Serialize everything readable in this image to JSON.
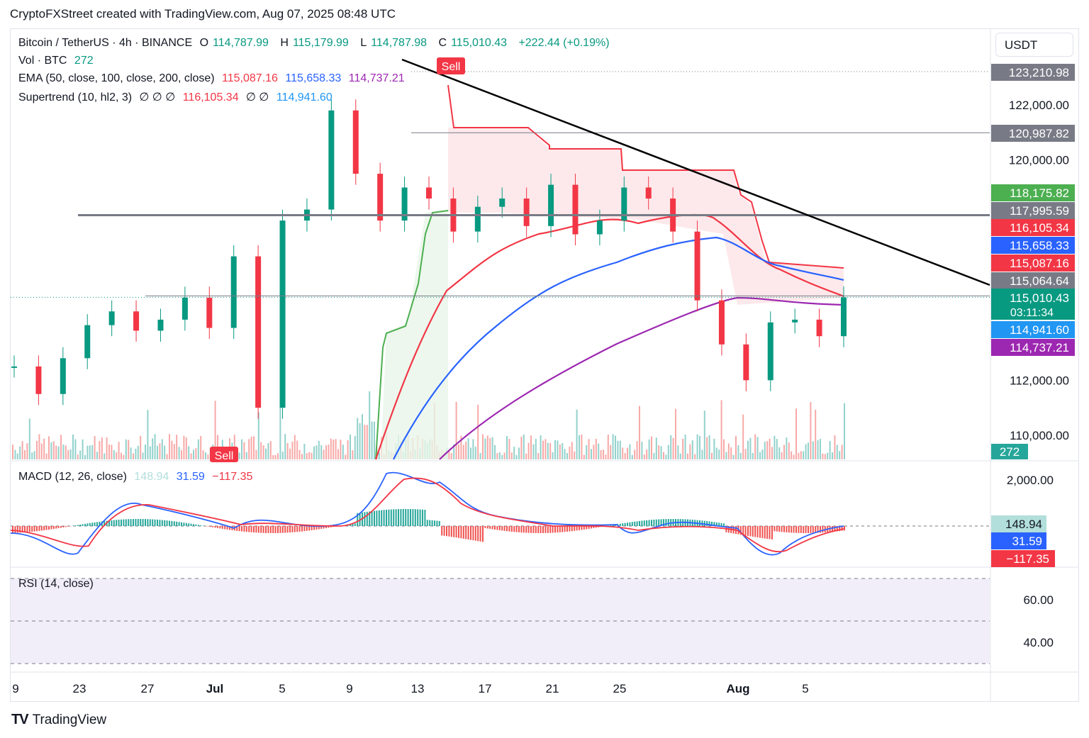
{
  "header": {
    "text": "CryptoFXStreet created with TradingView.com, Aug 07, 2025 08:48 UTC"
  },
  "footer": {
    "brand": "TradingView",
    "logo_icon": "tradingview-logo-icon"
  },
  "currency_button": "USDT",
  "legend": {
    "symbol": "Bitcoin / TetherUS · 4h · BINANCE",
    "o_label": "O",
    "o_value": "114,787.99",
    "h_label": "H",
    "h_value": "115,179.99",
    "l_label": "L",
    "l_value": "114,787.98",
    "c_label": "C",
    "c_value": "115,010.43",
    "change": "+222.44 (+0.19%)",
    "vol_label": "Vol · BTC",
    "vol_value": "272",
    "ema_label": "EMA (50, close, 100, close, 200, close)",
    "ema50": "115,087.16",
    "ema100": "115,658.33",
    "ema200": "114,737.21",
    "st_label": "Supertrend (10, hl2, 3)",
    "st_dots": "∅ ∅ ∅",
    "st_up": "116,105.34",
    "st_dots2": "∅ ∅",
    "st_down": "114,941.60",
    "macd_label": "MACD (12, 26, close)",
    "macd_hist": "148.94",
    "macd_line": "31.59",
    "macd_signal": "−117.35",
    "rsi_label": "RSI (14, close)"
  },
  "colors": {
    "up": "#089981",
    "down": "#f23645",
    "ema50": "#f23645",
    "ema100": "#2962ff",
    "ema200": "#9c27b0",
    "st_up": "#4caf50",
    "st_down": "#f23645",
    "macd": "#2962ff",
    "signal": "#f23645",
    "trendline": "#000000",
    "sr_line": "#787b86"
  },
  "chart_data": [
    {
      "type": "candlestick",
      "title": "Bitcoin / TetherUS · 4h · BINANCE",
      "x_ticks": [
        "9",
        "23",
        "27",
        "Jul",
        "5",
        "9",
        "13",
        "17",
        "21",
        "25",
        "Aug",
        "5"
      ],
      "y_ticks": [
        "122,000.00",
        "120,000.00",
        "112,000.00",
        "110,000.00"
      ],
      "ylim": [
        109000,
        124000
      ],
      "price_labels": [
        {
          "value": 123210.98,
          "text": "123,210.98",
          "color": "#787b86"
        },
        {
          "value": 120987.82,
          "text": "120,987.82",
          "color": "#787b86"
        },
        {
          "value": 118175.82,
          "text": "118,175.82",
          "color": "#4caf50"
        },
        {
          "value": 117995.59,
          "text": "117,995.59",
          "color": "#787b86"
        },
        {
          "value": 116105.34,
          "text": "116,105.34",
          "color": "#f23645"
        },
        {
          "value": 115658.33,
          "text": "115,658.33",
          "color": "#2962ff"
        },
        {
          "value": 115087.16,
          "text": "115,087.16",
          "color": "#f23645"
        },
        {
          "value": 115064.64,
          "text": "115,064.64",
          "color": "#787b86"
        },
        {
          "value": 115010.43,
          "text": "115,010.43",
          "color": "#089981"
        },
        {
          "value": 114941.6,
          "text": "114,941.60",
          "color": "#2196f3"
        },
        {
          "value": 114737.21,
          "text": "114,737.21",
          "color": "#9c27b0"
        }
      ],
      "countdown": "03:11:34",
      "volume_label": "272",
      "signals": [
        {
          "text": "Sell",
          "value": 123210.98,
          "date": "14"
        },
        {
          "text": "Sell",
          "date": "Jul 1"
        }
      ],
      "horizontal_levels": [
        117995.59,
        120987.82,
        115064.64
      ],
      "trendline": {
        "from_value": 123800,
        "to_value": 115500
      },
      "close_series_approx": [
        112500,
        111500,
        112800,
        114000,
        114500,
        113800,
        114200,
        115000,
        113900,
        116500,
        111000,
        117800,
        118200,
        121800,
        119500,
        117800,
        119000,
        118600,
        117400,
        118300,
        118600,
        117600,
        119100,
        117300,
        117800,
        119000,
        118600,
        117400,
        114900,
        113300,
        112000,
        114100,
        114200,
        113600,
        115010
      ]
    },
    {
      "type": "line",
      "title": "MACD (12, 26, close)",
      "y_ticks": [
        "2,000.00"
      ],
      "labels": [
        {
          "text": "148.94",
          "color": "#b2dfdb"
        },
        {
          "text": "31.59",
          "color": "#2962ff"
        },
        {
          "text": "−117.35",
          "color": "#f23645"
        }
      ]
    },
    {
      "type": "line",
      "title": "RSI (14, close)",
      "y_ticks": [
        "60.00",
        "40.00"
      ],
      "bands": [
        70,
        50,
        30
      ]
    }
  ]
}
